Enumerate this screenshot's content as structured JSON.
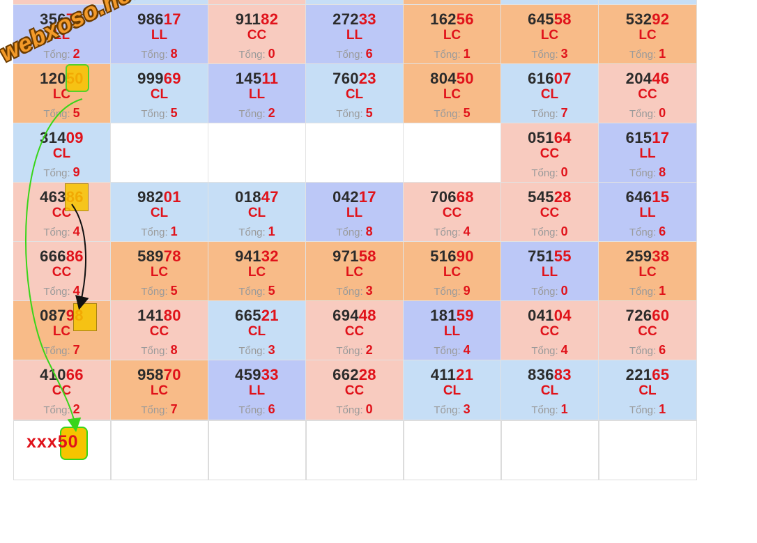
{
  "watermark": "webxoso.net",
  "tong_label": "Tổng:",
  "prediction": {
    "prefix": "xxx",
    "digits": "50"
  },
  "rows": [
    [
      {
        "prefix": "356",
        "suffix": "75",
        "type": "LL",
        "total": "2",
        "color": "pu"
      },
      {
        "prefix": "986",
        "suffix": "17",
        "type": "LL",
        "total": "8",
        "color": "pu"
      },
      {
        "prefix": "911",
        "suffix": "82",
        "type": "CC",
        "total": "0",
        "color": "pk"
      },
      {
        "prefix": "272",
        "suffix": "33",
        "type": "LL",
        "total": "6",
        "color": "pu"
      },
      {
        "prefix": "162",
        "suffix": "56",
        "type": "LC",
        "total": "1",
        "color": "or"
      },
      {
        "prefix": "645",
        "suffix": "58",
        "type": "LC",
        "total": "3",
        "color": "or"
      },
      {
        "prefix": "532",
        "suffix": "92",
        "type": "LC",
        "total": "1",
        "color": "or"
      }
    ],
    [
      {
        "prefix": "120",
        "suffix": "50",
        "type": "LC",
        "total": "5",
        "color": "or"
      },
      {
        "prefix": "999",
        "suffix": "69",
        "type": "CL",
        "total": "5",
        "color": "lb"
      },
      {
        "prefix": "145",
        "suffix": "11",
        "type": "LL",
        "total": "2",
        "color": "pu"
      },
      {
        "prefix": "760",
        "suffix": "23",
        "type": "CL",
        "total": "5",
        "color": "lb"
      },
      {
        "prefix": "804",
        "suffix": "50",
        "type": "LC",
        "total": "5",
        "color": "or"
      },
      {
        "prefix": "616",
        "suffix": "07",
        "type": "CL",
        "total": "7",
        "color": "lb"
      },
      {
        "prefix": "204",
        "suffix": "46",
        "type": "CC",
        "total": "0",
        "color": "pk"
      }
    ],
    [
      {
        "prefix": "314",
        "suffix": "09",
        "type": "CL",
        "total": "9",
        "color": "lb"
      },
      null,
      null,
      null,
      null,
      {
        "prefix": "051",
        "suffix": "64",
        "type": "CC",
        "total": "0",
        "color": "pk"
      },
      {
        "prefix": "615",
        "suffix": "17",
        "type": "LL",
        "total": "8",
        "color": "pu"
      }
    ],
    [
      {
        "prefix": "463",
        "suffix": "86",
        "type": "CC",
        "total": "4",
        "color": "pk"
      },
      {
        "prefix": "982",
        "suffix": "01",
        "type": "CL",
        "total": "1",
        "color": "lb"
      },
      {
        "prefix": "018",
        "suffix": "47",
        "type": "CL",
        "total": "1",
        "color": "lb"
      },
      {
        "prefix": "042",
        "suffix": "17",
        "type": "LL",
        "total": "8",
        "color": "pu"
      },
      {
        "prefix": "706",
        "suffix": "68",
        "type": "CC",
        "total": "4",
        "color": "pk"
      },
      {
        "prefix": "545",
        "suffix": "28",
        "type": "CC",
        "total": "0",
        "color": "pk"
      },
      {
        "prefix": "646",
        "suffix": "15",
        "type": "LL",
        "total": "6",
        "color": "pu"
      }
    ],
    [
      {
        "prefix": "666",
        "suffix": "86",
        "type": "CC",
        "total": "4",
        "color": "pk"
      },
      {
        "prefix": "589",
        "suffix": "78",
        "type": "LC",
        "total": "5",
        "color": "or"
      },
      {
        "prefix": "941",
        "suffix": "32",
        "type": "LC",
        "total": "5",
        "color": "or"
      },
      {
        "prefix": "971",
        "suffix": "58",
        "type": "LC",
        "total": "3",
        "color": "or"
      },
      {
        "prefix": "516",
        "suffix": "90",
        "type": "LC",
        "total": "9",
        "color": "or"
      },
      {
        "prefix": "751",
        "suffix": "55",
        "type": "LL",
        "total": "0",
        "color": "pu"
      },
      {
        "prefix": "259",
        "suffix": "38",
        "type": "LC",
        "total": "1",
        "color": "or"
      }
    ],
    [
      {
        "prefix": "087",
        "suffix": "98",
        "type": "LC",
        "total": "7",
        "color": "or"
      },
      {
        "prefix": "141",
        "suffix": "80",
        "type": "CC",
        "total": "8",
        "color": "pk"
      },
      {
        "prefix": "665",
        "suffix": "21",
        "type": "CL",
        "total": "3",
        "color": "lb"
      },
      {
        "prefix": "694",
        "suffix": "48",
        "type": "CC",
        "total": "2",
        "color": "pk"
      },
      {
        "prefix": "181",
        "suffix": "59",
        "type": "LL",
        "total": "4",
        "color": "pu"
      },
      {
        "prefix": "041",
        "suffix": "04",
        "type": "CC",
        "total": "4",
        "color": "pk"
      },
      {
        "prefix": "726",
        "suffix": "60",
        "type": "CC",
        "total": "6",
        "color": "pk"
      }
    ],
    [
      {
        "prefix": "410",
        "suffix": "66",
        "type": "CC",
        "total": "2",
        "color": "pk"
      },
      {
        "prefix": "958",
        "suffix": "70",
        "type": "LC",
        "total": "7",
        "color": "or"
      },
      {
        "prefix": "459",
        "suffix": "33",
        "type": "LL",
        "total": "6",
        "color": "pu"
      },
      {
        "prefix": "662",
        "suffix": "28",
        "type": "CC",
        "total": "0",
        "color": "pk"
      },
      {
        "prefix": "411",
        "suffix": "21",
        "type": "CL",
        "total": "3",
        "color": "lb"
      },
      {
        "prefix": "836",
        "suffix": "83",
        "type": "CL",
        "total": "1",
        "color": "lb"
      },
      {
        "prefix": "221",
        "suffix": "65",
        "type": "CL",
        "total": "1",
        "color": "lb"
      }
    ]
  ],
  "top_strip_colors": [
    "pk",
    "lb",
    "pk",
    "lb",
    "or",
    "lb",
    "lb"
  ],
  "colors": {
    "lb": "#c6def6",
    "pu": "#bcc8f7",
    "or": "#f8bb88",
    "pk": "#f8cbbf",
    "digit_red": "#e0121a",
    "highlight": "#f6c400",
    "arrow_green": "#39d51a"
  }
}
